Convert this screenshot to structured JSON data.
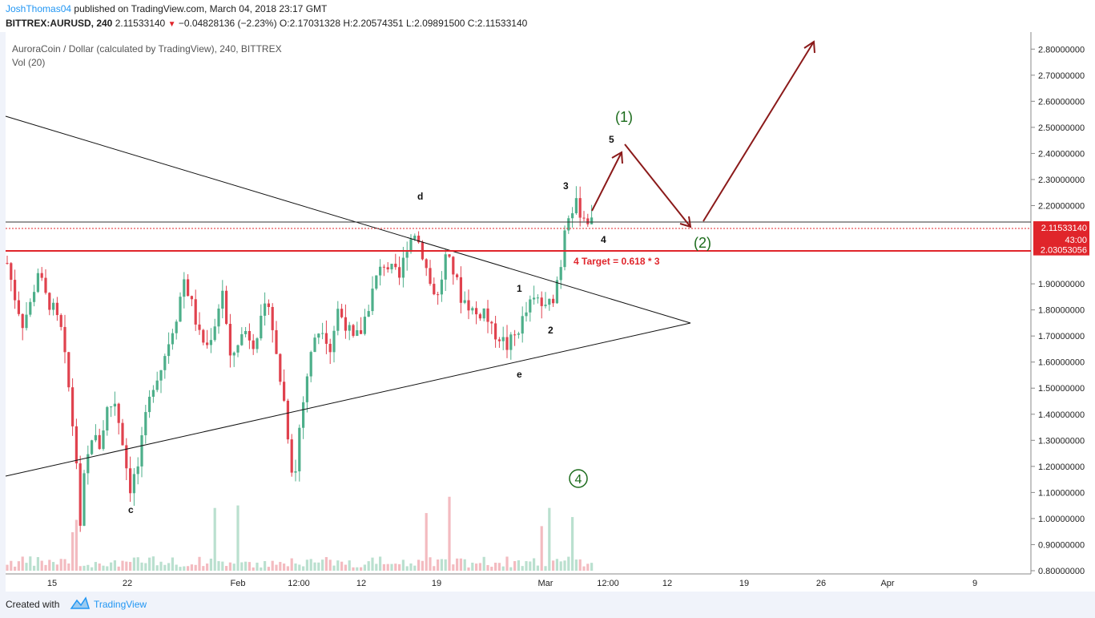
{
  "header": {
    "author": "JoshThomas04",
    "published": "published on TradingView.com, March 04, 2018 23:17 GMT",
    "symbol": "BITTREX:AURUSD, 240",
    "last": "2.11533140",
    "change": "−0.04828136 (−2.23%)",
    "ohlc": "O:2.17031328  H:2.20574351  L:2.09891500  C:2.11533140"
  },
  "footer": {
    "created_with": "Created with",
    "brand": "TradingView"
  },
  "chart_data": {
    "type": "candlestick",
    "title": "AuroraCoin / Dollar (calculated by TradingView), 240, BITTREX",
    "indicator": "Vol (20)",
    "ylim": [
      0.8,
      2.85
    ],
    "y_ticks": [
      "2.80000000",
      "2.70000000",
      "2.60000000",
      "2.50000000",
      "2.40000000",
      "2.30000000",
      "2.20000000",
      "1.90000000",
      "1.80000000",
      "1.70000000",
      "1.60000000",
      "1.50000000",
      "1.40000000",
      "1.30000000",
      "1.20000000",
      "1.10000000",
      "1.00000000",
      "0.90000000",
      "0.80000000"
    ],
    "x_ticks": [
      "15",
      "22",
      "Feb",
      "12:00",
      "12",
      "19",
      "Mar",
      "12:00",
      "12",
      "19",
      "26",
      "Apr",
      "9"
    ],
    "price_labels": [
      {
        "text": "2.11533140",
        "price": 2.11533,
        "color": "#e0252b"
      },
      {
        "text": "43:00",
        "price": 2.07,
        "color": "#e0252b"
      },
      {
        "text": "2.03053056",
        "price": 2.03053,
        "color": "#e0252b"
      }
    ],
    "up_color": "#4daf8a",
    "down_color": "#e0424e",
    "annotations": {
      "wave_labels": [
        "d",
        "c",
        "e",
        "1",
        "2",
        "3",
        "4",
        "5"
      ],
      "projection_labels": [
        "(1)",
        "(2)",
        "4"
      ],
      "target_text": "4 Target = 0.618 * 3"
    },
    "price_path": [
      [
        0,
        1.98
      ],
      [
        2,
        1.85
      ],
      [
        4,
        1.75
      ],
      [
        6,
        1.82
      ],
      [
        8,
        1.95
      ],
      [
        10,
        1.85
      ],
      [
        12,
        1.8
      ],
      [
        14,
        1.72
      ],
      [
        16,
        1.5
      ],
      [
        18,
        1.22
      ],
      [
        19,
        0.95
      ],
      [
        20,
        1.15
      ],
      [
        22,
        1.32
      ],
      [
        24,
        1.28
      ],
      [
        26,
        1.42
      ],
      [
        28,
        1.45
      ],
      [
        30,
        1.3
      ],
      [
        31,
        1.2
      ],
      [
        32,
        1.12
      ],
      [
        34,
        1.2
      ],
      [
        36,
        1.38
      ],
      [
        38,
        1.52
      ],
      [
        40,
        1.58
      ],
      [
        42,
        1.68
      ],
      [
        44,
        1.78
      ],
      [
        46,
        1.92
      ],
      [
        48,
        1.82
      ],
      [
        50,
        1.7
      ],
      [
        52,
        1.66
      ],
      [
        54,
        1.75
      ],
      [
        56,
        1.88
      ],
      [
        58,
        1.6
      ],
      [
        60,
        1.68
      ],
      [
        62,
        1.72
      ],
      [
        64,
        1.68
      ],
      [
        66,
        1.75
      ],
      [
        68,
        1.84
      ],
      [
        70,
        1.62
      ],
      [
        72,
        1.45
      ],
      [
        74,
        1.2
      ],
      [
        75,
        1.18
      ],
      [
        76,
        1.35
      ],
      [
        78,
        1.55
      ],
      [
        80,
        1.7
      ],
      [
        82,
        1.74
      ],
      [
        84,
        1.65
      ],
      [
        86,
        1.8
      ],
      [
        88,
        1.75
      ],
      [
        90,
        1.68
      ],
      [
        92,
        1.72
      ],
      [
        94,
        1.82
      ],
      [
        96,
        1.92
      ],
      [
        98,
        1.98
      ],
      [
        100,
        1.95
      ],
      [
        102,
        1.92
      ],
      [
        104,
        2.05
      ],
      [
        106,
        2.1
      ],
      [
        108,
        2.02
      ],
      [
        110,
        1.9
      ],
      [
        112,
        1.85
      ],
      [
        114,
        2.0
      ],
      [
        116,
        1.95
      ],
      [
        118,
        1.85
      ],
      [
        120,
        1.82
      ],
      [
        122,
        1.78
      ],
      [
        124,
        1.8
      ],
      [
        126,
        1.72
      ],
      [
        128,
        1.7
      ],
      [
        130,
        1.66
      ],
      [
        132,
        1.7
      ],
      [
        134,
        1.76
      ],
      [
        136,
        1.82
      ],
      [
        138,
        1.84
      ],
      [
        140,
        1.8
      ],
      [
        142,
        1.85
      ],
      [
        144,
        1.98
      ],
      [
        145,
        2.12
      ],
      [
        146,
        2.18
      ],
      [
        148,
        2.2
      ],
      [
        150,
        2.16
      ],
      [
        152,
        2.13
      ]
    ]
  }
}
